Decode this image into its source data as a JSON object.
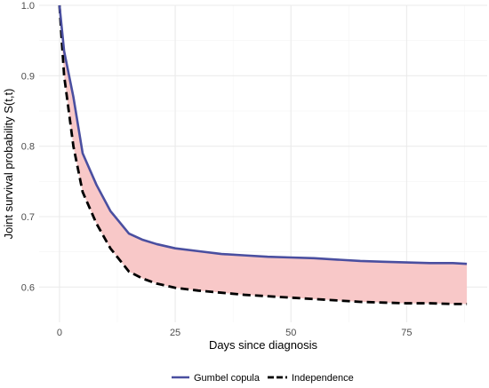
{
  "chart_data": {
    "type": "line",
    "title": "",
    "xlabel": "Days since diagnosis",
    "ylabel": "Joint survival probability S(t,t)",
    "xlim": [
      -4.4,
      92.4
    ],
    "ylim": [
      0.55,
      1.0
    ],
    "x_ticks": [
      0,
      25,
      50,
      75
    ],
    "x_tick_labels": [
      "0",
      "25",
      "50",
      "75"
    ],
    "y_ticks": [
      0.6,
      0.7,
      0.8,
      0.9,
      1.0
    ],
    "y_tick_labels": [
      "0.6",
      "0.7",
      "0.8",
      "0.9",
      "1.0"
    ],
    "grid": true,
    "legend_position": "bottom",
    "shaded_region": {
      "between": [
        "Gumbel copula",
        "Independence"
      ],
      "color": "#f8c8c8"
    },
    "series": [
      {
        "name": "Gumbel copula",
        "style": "solid",
        "color": "#4a4fa0",
        "x": [
          0,
          1,
          3,
          5,
          8,
          11,
          15,
          18,
          21,
          25,
          30,
          35,
          40,
          45,
          50,
          55,
          60,
          65,
          70,
          75,
          80,
          85,
          88
        ],
        "y": [
          1.0,
          0.935,
          0.87,
          0.79,
          0.745,
          0.708,
          0.676,
          0.667,
          0.661,
          0.655,
          0.651,
          0.647,
          0.645,
          0.643,
          0.642,
          0.641,
          0.639,
          0.637,
          0.636,
          0.635,
          0.634,
          0.634,
          0.633
        ]
      },
      {
        "name": "Independence",
        "style": "dashed",
        "color": "#000000",
        "x": [
          0,
          1,
          3,
          5,
          8,
          11,
          15,
          18,
          21,
          25,
          30,
          35,
          40,
          45,
          50,
          55,
          60,
          65,
          70,
          75,
          80,
          85,
          88
        ],
        "y": [
          1.0,
          0.9,
          0.8,
          0.735,
          0.69,
          0.655,
          0.622,
          0.612,
          0.605,
          0.599,
          0.595,
          0.592,
          0.589,
          0.587,
          0.585,
          0.583,
          0.581,
          0.579,
          0.578,
          0.577,
          0.577,
          0.576,
          0.576
        ]
      }
    ]
  },
  "legend": {
    "items": [
      {
        "label": "Gumbel copula",
        "color": "#4a4fa0",
        "style": "solid"
      },
      {
        "label": "Independence",
        "color": "#000000",
        "style": "dashed"
      }
    ]
  }
}
